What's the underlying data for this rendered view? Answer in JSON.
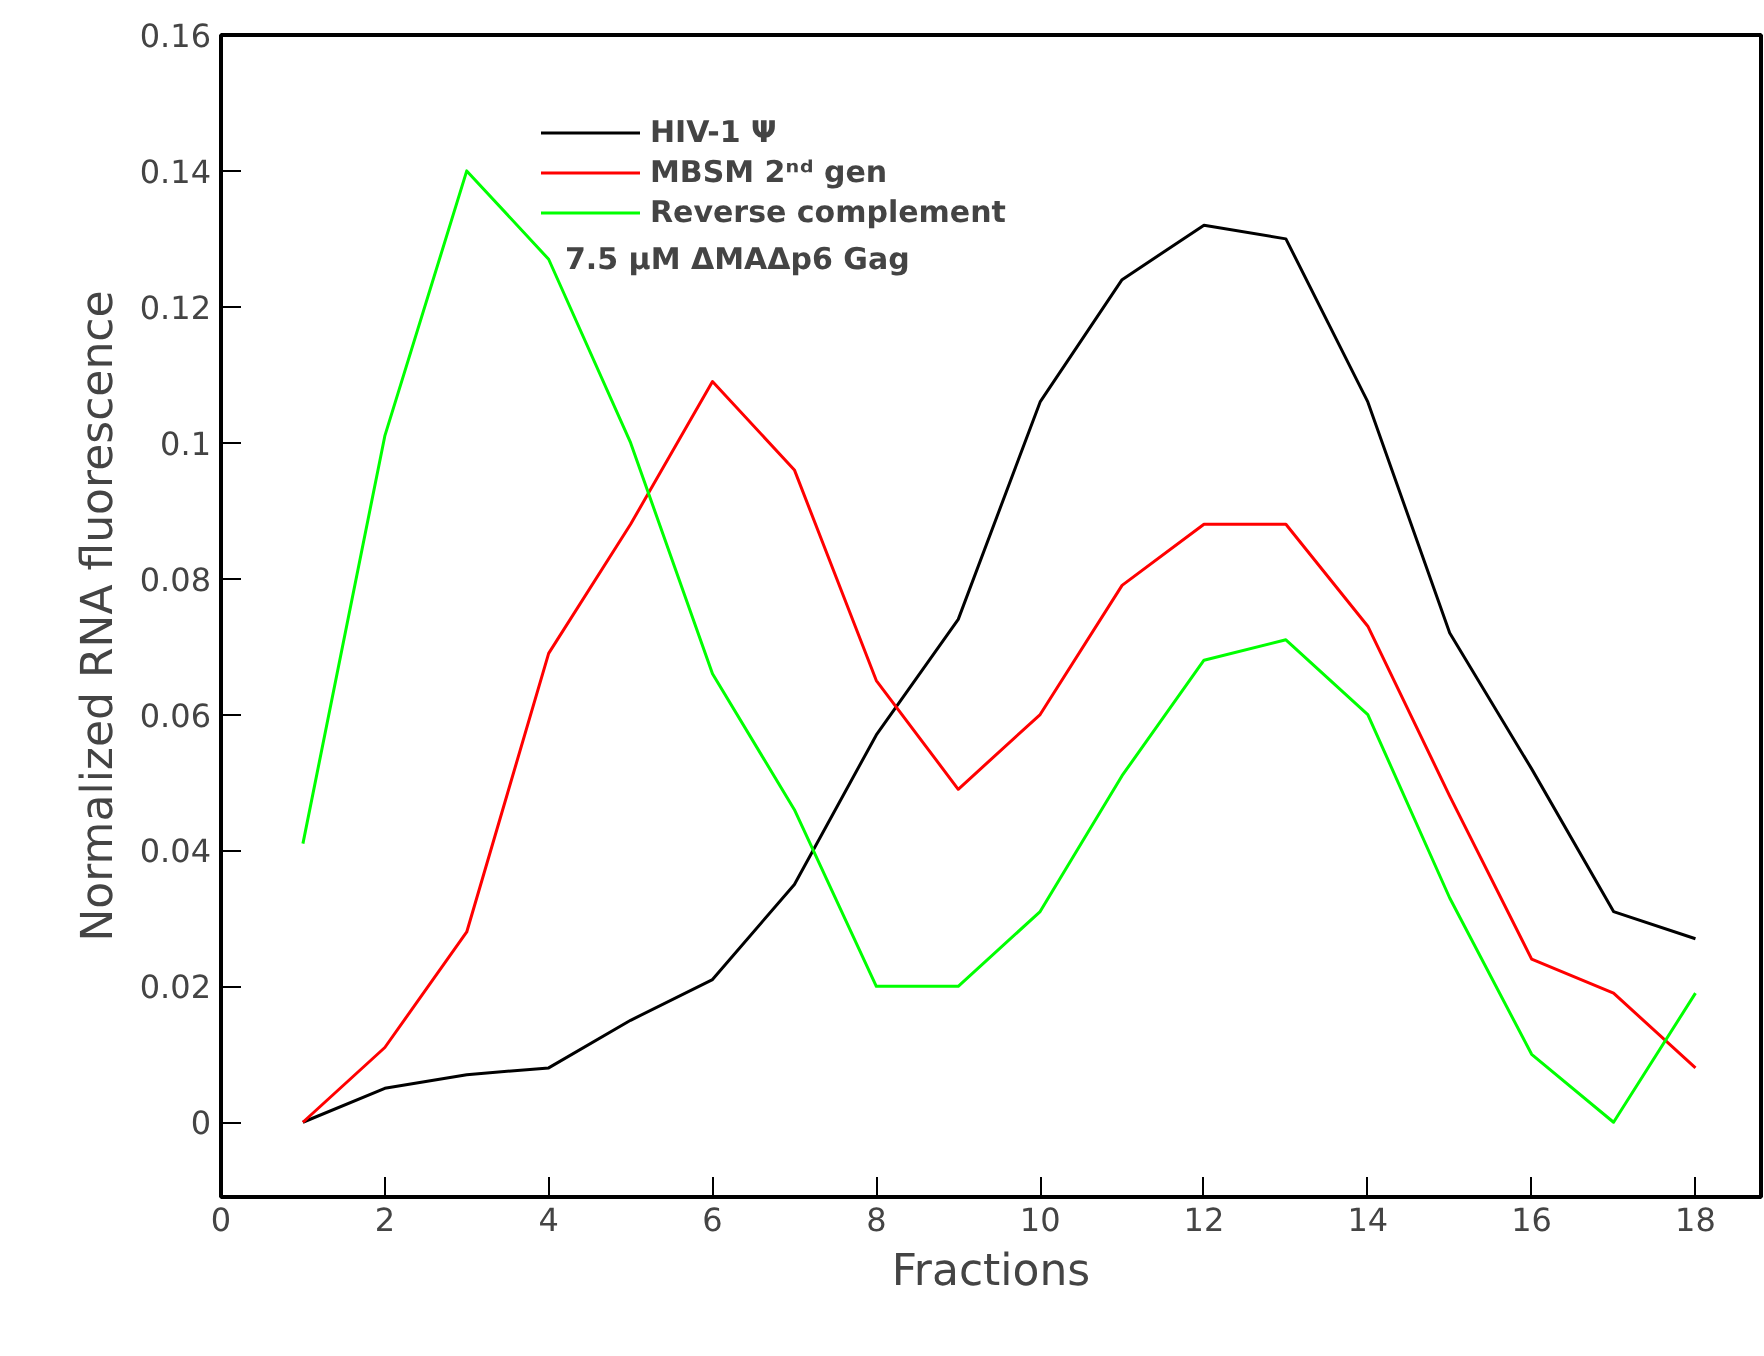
{
  "chart_data": {
    "type": "line",
    "xlabel": "Fractions",
    "ylabel": "Normalized RNA fluorescence",
    "x": [
      1,
      2,
      3,
      4,
      5,
      6,
      7,
      8,
      9,
      10,
      11,
      12,
      13,
      14,
      15,
      16,
      17,
      18
    ],
    "series": [
      {
        "name": "HIV-1 Ψ",
        "color": "#000000",
        "values": [
          0,
          0.005,
          0.007,
          0.008,
          0.015,
          0.021,
          0.035,
          0.057,
          0.074,
          0.106,
          0.124,
          0.132,
          0.13,
          0.106,
          0.072,
          0.052,
          0.031,
          0.027
        ]
      },
      {
        "name": "MBSM 2ⁿᵈ gen",
        "color": "#ff0000",
        "values": [
          0,
          0.011,
          0.028,
          0.069,
          0.088,
          0.109,
          0.096,
          0.065,
          0.049,
          0.06,
          0.079,
          0.088,
          0.088,
          0.073,
          0.048,
          0.024,
          0.019,
          0.008
        ]
      },
      {
        "name": "Reverse complement",
        "color": "#00ff00",
        "values": [
          0.041,
          0.101,
          0.14,
          0.127,
          0.1,
          0.066,
          0.046,
          0.02,
          0.02,
          0.031,
          0.051,
          0.068,
          0.071,
          0.06,
          0.033,
          0.01,
          0.0,
          0.019
        ]
      }
    ],
    "annotations": [
      "7.5 µM ΔMAΔp6 Gag"
    ],
    "xlim": [
      0,
      18.8
    ],
    "ylim": [
      -0.011,
      0.16
    ],
    "xticks": [
      0,
      2,
      4,
      6,
      8,
      10,
      12,
      14,
      16,
      18
    ],
    "yticks": [
      0,
      0.02,
      0.04,
      0.06,
      0.08,
      {
        "value": 0.1,
        "label": "0.1"
      },
      0.12,
      0.14,
      0.16
    ],
    "grid": false,
    "legend": "top left",
    "marker": "none",
    "line_style": "solid"
  }
}
